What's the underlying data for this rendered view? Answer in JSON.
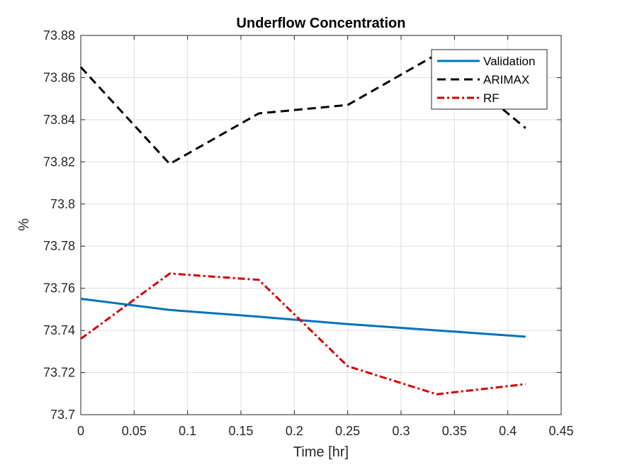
{
  "chart_data": {
    "type": "line",
    "title": "Underflow Concentration",
    "xlabel": "Time [hr]",
    "ylabel": "%",
    "xlim": [
      0,
      0.45
    ],
    "ylim": [
      73.7,
      73.88
    ],
    "xticks": [
      0,
      0.05,
      0.1,
      0.15,
      0.2,
      0.25,
      0.3,
      0.35,
      0.4,
      0.45
    ],
    "xtick_labels": [
      "0",
      "0.05",
      "0.1",
      "0.15",
      "0.2",
      "0.25",
      "0.3",
      "0.35",
      "0.4",
      "0.45"
    ],
    "yticks": [
      73.7,
      73.72,
      73.74,
      73.76,
      73.78,
      73.8,
      73.82,
      73.84,
      73.86,
      73.88
    ],
    "ytick_labels": [
      "73.7",
      "73.72",
      "73.74",
      "73.76",
      "73.78",
      "73.8",
      "73.82",
      "73.84",
      "73.86",
      "73.88"
    ],
    "grid": true,
    "legend_position": "top-right",
    "x": [
      0,
      0.0833,
      0.1667,
      0.25,
      0.3333,
      0.4167
    ],
    "series": [
      {
        "name": "Validation",
        "color": "#0072bd",
        "style": "solid",
        "values": [
          73.755,
          73.7497,
          73.7465,
          73.743,
          73.74,
          73.737
        ]
      },
      {
        "name": "ARIMAX",
        "color": "#000000",
        "style": "dashed",
        "values": [
          73.865,
          73.819,
          73.843,
          73.847,
          73.871,
          73.836
        ]
      },
      {
        "name": "RF",
        "color": "#d00000",
        "style": "dashdot",
        "values": [
          73.736,
          73.767,
          73.764,
          73.723,
          73.7097,
          73.7145
        ]
      }
    ]
  }
}
